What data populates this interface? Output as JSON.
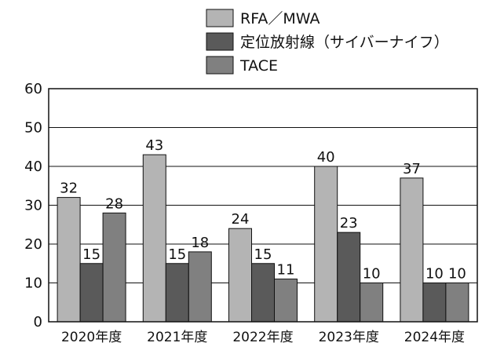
{
  "chart_data": {
    "type": "bar",
    "title": "",
    "xlabel": "",
    "ylabel": "",
    "categories": [
      "2020年度",
      "2021年度",
      "2022年度",
      "2023年度",
      "2024年度"
    ],
    "series": [
      {
        "name": "RFA／MWA",
        "values": [
          32,
          43,
          24,
          40,
          37
        ],
        "color": "#b4b4b4",
        "label_values": [
          "32",
          "43",
          "24",
          "40",
          "37"
        ]
      },
      {
        "name": "定位放射線（サイバーナイフ）",
        "values": [
          15,
          15,
          15,
          23,
          10
        ],
        "color": "#5a5a5a",
        "label_values": [
          "15",
          "15",
          "15",
          "23",
          "10"
        ]
      },
      {
        "name": "TACE",
        "values": [
          28,
          18,
          11,
          10,
          10
        ],
        "color": "#808080",
        "label_values": [
          "28",
          "18",
          "11",
          "10",
          "10"
        ]
      }
    ],
    "ylim": [
      0,
      60
    ],
    "yticks": [
      "0",
      "10",
      "20",
      "30",
      "40",
      "50",
      "60"
    ],
    "grid": true,
    "legend_position": "top-right"
  }
}
